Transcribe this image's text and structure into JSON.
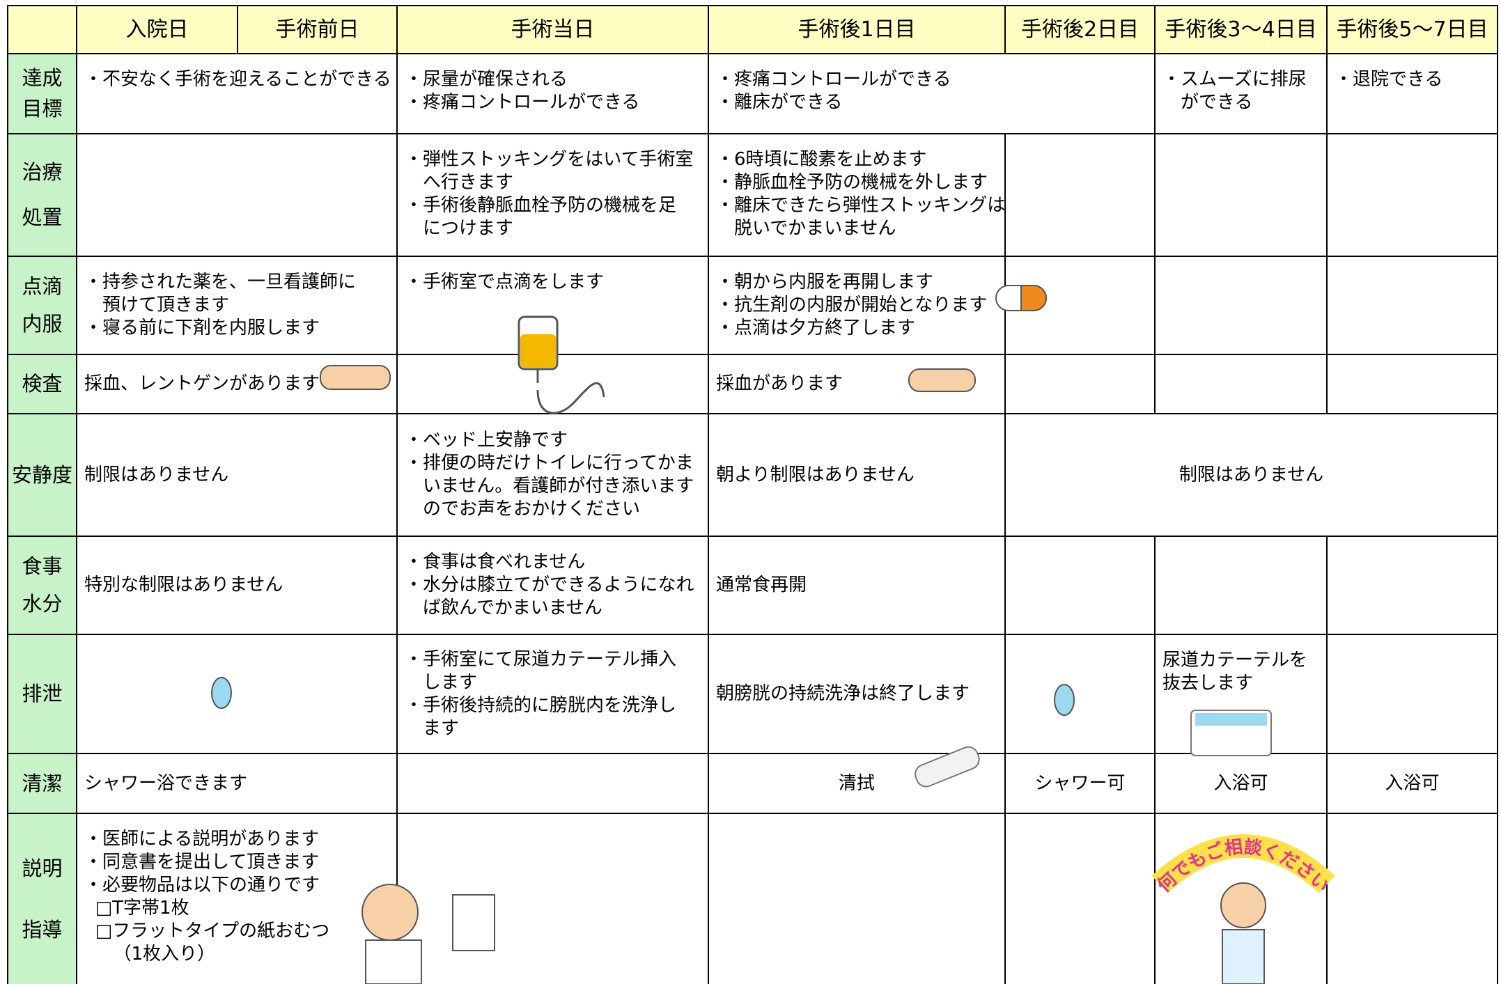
{
  "header": [
    "入院日",
    "手術前日",
    "手術当日",
    "手術後1日目",
    "手術後2日目",
    "手術後3～4日目",
    "手術後5～7日目"
  ],
  "rows": [
    {
      "label": [
        "達成",
        "目標"
      ],
      "cells": [
        [
          "・不安なく手術を迎えることができる"
        ],
        [
          "・尿量が確保される",
          "・疼痛コントロールができる"
        ],
        [
          "・疼痛コントロールができる",
          "・離床ができる"
        ],
        [
          "・スムーズに排尿",
          "ができる"
        ],
        [
          "・退院できる"
        ]
      ]
    },
    {
      "label": [
        "治療",
        "処置"
      ],
      "cells": [
        [
          "・弾性ストッキングをはいて手術室",
          "へ行きます",
          "・手術後静脈血栓予防の機械を足",
          "につけます"
        ],
        [
          "・6時頃に酸素を止めます",
          "・静脈血栓予防の機械を外します",
          "・離床できたら弾性ストッキングは",
          "脱いでかまいません"
        ]
      ]
    },
    {
      "label": [
        "点滴",
        "内服"
      ],
      "cells": [
        [
          "・持参された薬を、一旦看護師に",
          "預けて頂きます",
          "・寝る前に下剤を内服します"
        ],
        [
          "・手術室で点滴をします"
        ],
        [
          "・朝から内服を再開します",
          "・抗生剤の内服が開始となります",
          "・点滴は夕方終了します"
        ]
      ]
    },
    {
      "label": [
        "検査"
      ],
      "cells": [
        [
          "採血、レントゲンがあります"
        ],
        [
          "採血があります"
        ]
      ]
    },
    {
      "label": [
        "安静度"
      ],
      "cells": [
        [
          "制限はありません"
        ],
        [
          "・ベッド上安静です",
          "・排便の時だけトイレに行ってかま",
          "いません。看護師が付き添います",
          "のでお声をおかけください"
        ],
        [
          "朝より制限はありません"
        ],
        [
          "制限はありません"
        ]
      ]
    },
    {
      "label": [
        "食事",
        "水分"
      ],
      "cells": [
        [
          "特別な制限はありません"
        ],
        [
          "・食事は食べれません",
          "・水分は膝立てができるようになれ",
          "ば飲んでかまいません"
        ],
        [
          "通常食再開"
        ]
      ]
    },
    {
      "label": [
        "排泄"
      ],
      "cells": [
        [
          "・手術室にて尿道カテーテル挿入",
          "します",
          "・手術後持続的に膀胱内を洗浄し",
          "ます"
        ],
        [
          "朝膀胱の持続洗浄は終了します"
        ],
        [
          "尿道カテーテルを",
          "抜去します"
        ]
      ]
    },
    {
      "label": [
        "清潔"
      ],
      "cells": [
        [
          "シャワー浴できます"
        ],
        [
          "清拭"
        ],
        [
          "シャワー可"
        ],
        [
          "入浴可"
        ],
        [
          "入浴可"
        ]
      ]
    },
    {
      "label": [
        "説明",
        "指導"
      ],
      "cells": [
        [
          "・医師による説明があります",
          "・同意書を提出して頂きます",
          "・必要物品は以下の通りです",
          "□T字帯1枚",
          "□フラットタイプの紙おむつ",
          "（1枚入り）"
        ]
      ]
    }
  ],
  "badge": "何でもご相談ください"
}
